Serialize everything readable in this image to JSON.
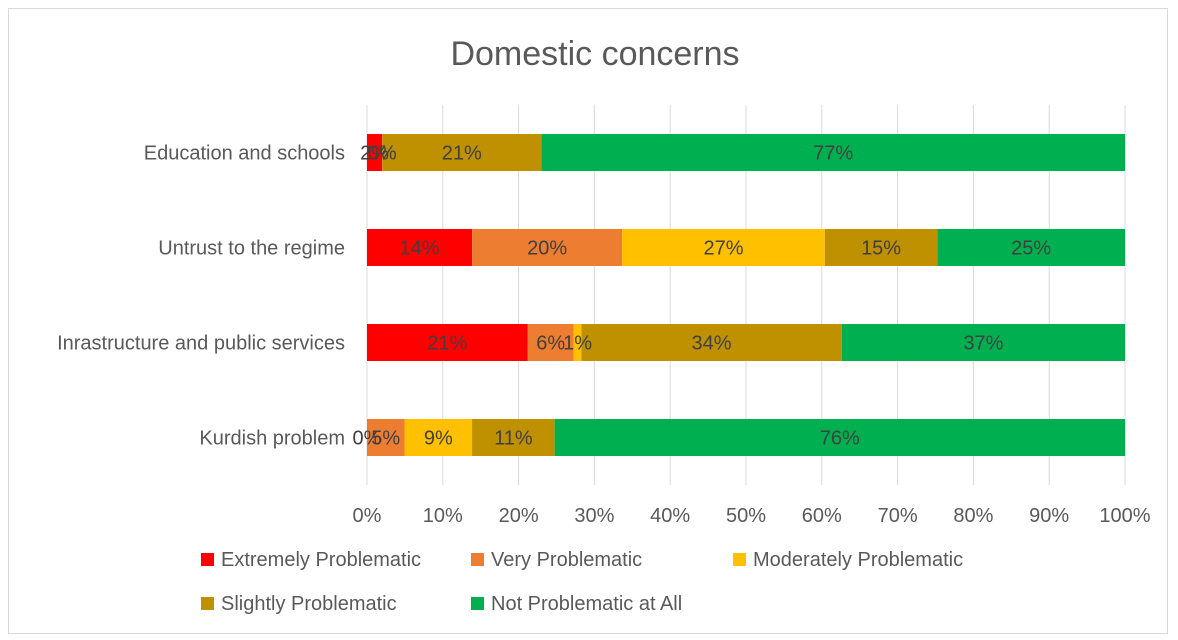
{
  "chart_data": {
    "type": "bar",
    "orientation": "horizontal",
    "stacked": true,
    "percent_stacked": true,
    "title": "Domestic concerns",
    "categories": [
      "Education and schools",
      "Untrust to the regime",
      "Inrastructure and public services",
      "Kurdish problem"
    ],
    "series": [
      {
        "name": "Extremely Problematic",
        "color": "#ff0000",
        "values": [
          2,
          14,
          21,
          0
        ],
        "labels": [
          "2%",
          "14%",
          "21%",
          "0%"
        ]
      },
      {
        "name": "Very Problematic",
        "color": "#ed7d31",
        "values": [
          0,
          20,
          6,
          5
        ],
        "labels": [
          "0%",
          "20%",
          "6%",
          "5%"
        ]
      },
      {
        "name": "Moderately Problematic",
        "color": "#ffc000",
        "values": [
          0,
          27,
          1,
          9
        ],
        "labels": [
          "",
          "27%",
          "1%",
          "9%"
        ]
      },
      {
        "name": "Slightly Problematic",
        "color": "#bf9000",
        "values": [
          21,
          15,
          34,
          11
        ],
        "labels": [
          "21%",
          "15%",
          "34%",
          "11%"
        ]
      },
      {
        "name": "Not Problematic at All",
        "color": "#00b050",
        "values": [
          77,
          25,
          37,
          76
        ],
        "labels": [
          "77%",
          "25%",
          "37%",
          "76%"
        ]
      }
    ],
    "xaxis": {
      "range": [
        0,
        100
      ],
      "ticks": [
        "0%",
        "10%",
        "20%",
        "30%",
        "40%",
        "50%",
        "60%",
        "70%",
        "80%",
        "90%",
        "100%"
      ]
    },
    "grid": "vertical",
    "legend_position": "bottom"
  }
}
